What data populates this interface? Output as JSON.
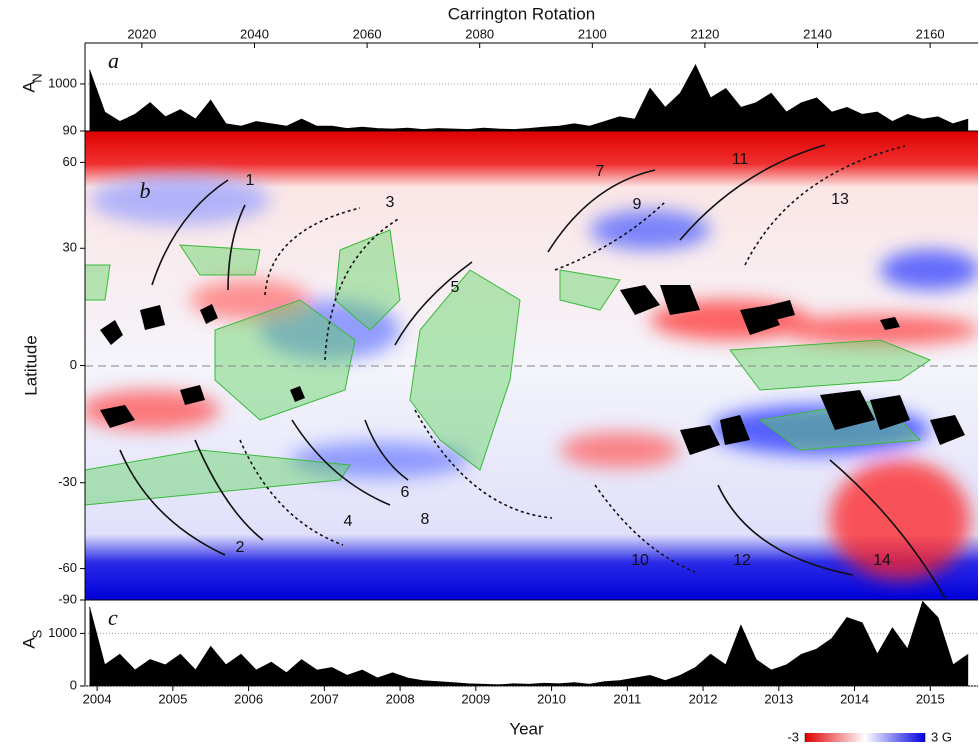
{
  "chart_data": [
    {
      "type": "area",
      "panel_label": "a",
      "ylabel": "A",
      "ylabel_sub": "N",
      "x2label": "Carrington Rotation",
      "x2lim": [
        2009.9,
        2168.5
      ],
      "x2ticks": [
        2020,
        2040,
        2060,
        2080,
        2100,
        2120,
        2140,
        2160
      ],
      "xlim": [
        2003.84,
        2015.63
      ],
      "ylim": [
        0,
        1870
      ],
      "yticks": [
        1000
      ],
      "color": "#000000",
      "x": [
        2003.9,
        2004.1,
        2004.3,
        2004.5,
        2004.7,
        2004.9,
        2005.1,
        2005.3,
        2005.5,
        2005.7,
        2005.9,
        2006.1,
        2006.3,
        2006.5,
        2006.7,
        2006.9,
        2007.1,
        2007.3,
        2007.5,
        2007.7,
        2007.9,
        2008.1,
        2008.3,
        2008.5,
        2008.7,
        2008.9,
        2009.1,
        2009.3,
        2009.5,
        2009.7,
        2009.9,
        2010.1,
        2010.3,
        2010.5,
        2010.7,
        2010.9,
        2011.1,
        2011.3,
        2011.5,
        2011.7,
        2011.9,
        2012.1,
        2012.3,
        2012.5,
        2012.7,
        2012.9,
        2013.1,
        2013.3,
        2013.5,
        2013.7,
        2013.9,
        2014.1,
        2014.3,
        2014.5,
        2014.7,
        2014.9,
        2015.1,
        2015.3,
        2015.5
      ],
      "values": [
        1300,
        400,
        200,
        350,
        600,
        300,
        450,
        250,
        650,
        150,
        100,
        200,
        150,
        100,
        250,
        100,
        100,
        50,
        80,
        50,
        40,
        60,
        30,
        50,
        40,
        30,
        60,
        40,
        30,
        50,
        80,
        100,
        150,
        100,
        200,
        300,
        250,
        900,
        500,
        800,
        1400,
        700,
        900,
        500,
        600,
        800,
        400,
        600,
        700,
        400,
        500,
        350,
        400,
        200,
        350,
        250,
        300,
        150,
        250
      ]
    },
    {
      "type": "butterfly",
      "panel_label": "b",
      "ylabel": "Latitude",
      "ylim": [
        -90,
        90
      ],
      "yscale": "sine",
      "yticks": [
        90,
        60,
        30,
        0,
        -30,
        -60,
        -90
      ],
      "annotations": [
        "1",
        "2",
        "3",
        "4",
        "5",
        "6",
        "7",
        "8",
        "9",
        "10",
        "11",
        "12",
        "13",
        "14"
      ],
      "colorbar": {
        "ticks": [
          -3,
          {
            "value": 3,
            "label": "3 G"
          }
        ],
        "colors": [
          "#e00000",
          "#ffffff",
          "#0000e0"
        ]
      }
    },
    {
      "type": "area",
      "panel_label": "c",
      "ylabel": "A",
      "ylabel_sub": "S",
      "xlabel": "Year",
      "xlim": [
        2003.84,
        2015.63
      ],
      "xticks": [
        2004,
        2005,
        2006,
        2007,
        2008,
        2009,
        2010,
        2011,
        2012,
        2013,
        2014,
        2015
      ],
      "ylim": [
        0,
        1635
      ],
      "yticks": [
        0,
        1000
      ],
      "color": "#000000",
      "x": [
        2003.9,
        2004.1,
        2004.3,
        2004.5,
        2004.7,
        2004.9,
        2005.1,
        2005.3,
        2005.5,
        2005.7,
        2005.9,
        2006.1,
        2006.3,
        2006.5,
        2006.7,
        2006.9,
        2007.1,
        2007.3,
        2007.5,
        2007.7,
        2007.9,
        2008.1,
        2008.3,
        2008.5,
        2008.7,
        2008.9,
        2009.1,
        2009.3,
        2009.5,
        2009.7,
        2009.9,
        2010.1,
        2010.3,
        2010.5,
        2010.7,
        2010.9,
        2011.1,
        2011.3,
        2011.5,
        2011.7,
        2011.9,
        2012.1,
        2012.3,
        2012.5,
        2012.7,
        2012.9,
        2013.1,
        2013.3,
        2013.5,
        2013.7,
        2013.9,
        2014.1,
        2014.3,
        2014.5,
        2014.7,
        2014.9,
        2015.1,
        2015.3,
        2015.5
      ],
      "values": [
        1500,
        400,
        600,
        300,
        500,
        400,
        600,
        300,
        750,
        400,
        600,
        300,
        450,
        250,
        500,
        300,
        350,
        200,
        300,
        150,
        250,
        150,
        100,
        80,
        60,
        40,
        30,
        20,
        40,
        30,
        50,
        40,
        60,
        30,
        80,
        100,
        150,
        200,
        100,
        200,
        350,
        600,
        400,
        1150,
        500,
        300,
        400,
        600,
        700,
        900,
        1300,
        1200,
        600,
        1100,
        700,
        1600,
        1300,
        400,
        600
      ]
    }
  ]
}
